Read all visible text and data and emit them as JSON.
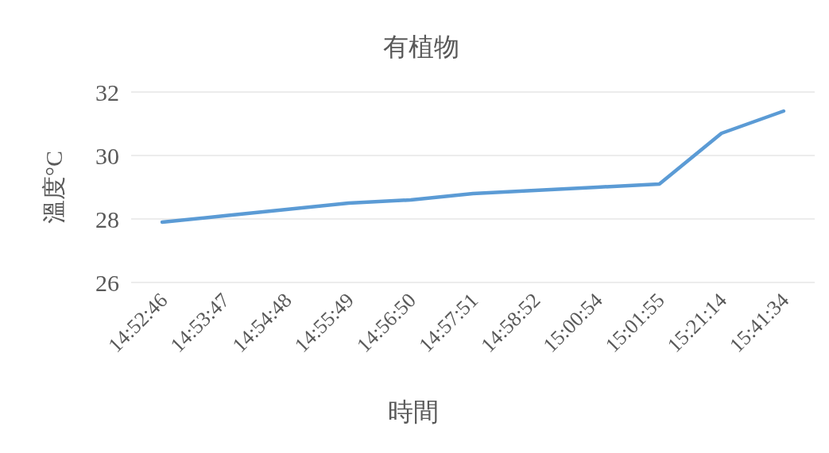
{
  "chart_data": {
    "type": "line",
    "title": "有植物",
    "xlabel": "時間",
    "ylabel": "溫度°C",
    "categories": [
      "14:52:46",
      "14:53:47",
      "14:54:48",
      "14:55:49",
      "14:56:50",
      "14:57:51",
      "14:58:52",
      "15:00:54",
      "15:01:55",
      "15:21:14",
      "15:41:34"
    ],
    "series": [
      {
        "color": "#5b9bd5",
        "values": [
          27.9,
          28.1,
          28.3,
          28.5,
          28.6,
          28.8,
          28.9,
          29.0,
          29.1,
          30.7,
          31.4
        ]
      }
    ],
    "ylim": [
      26,
      32
    ],
    "yticks": [
      26,
      28,
      30,
      32
    ],
    "grid": "y",
    "marker": "none",
    "line_style": "solid"
  }
}
